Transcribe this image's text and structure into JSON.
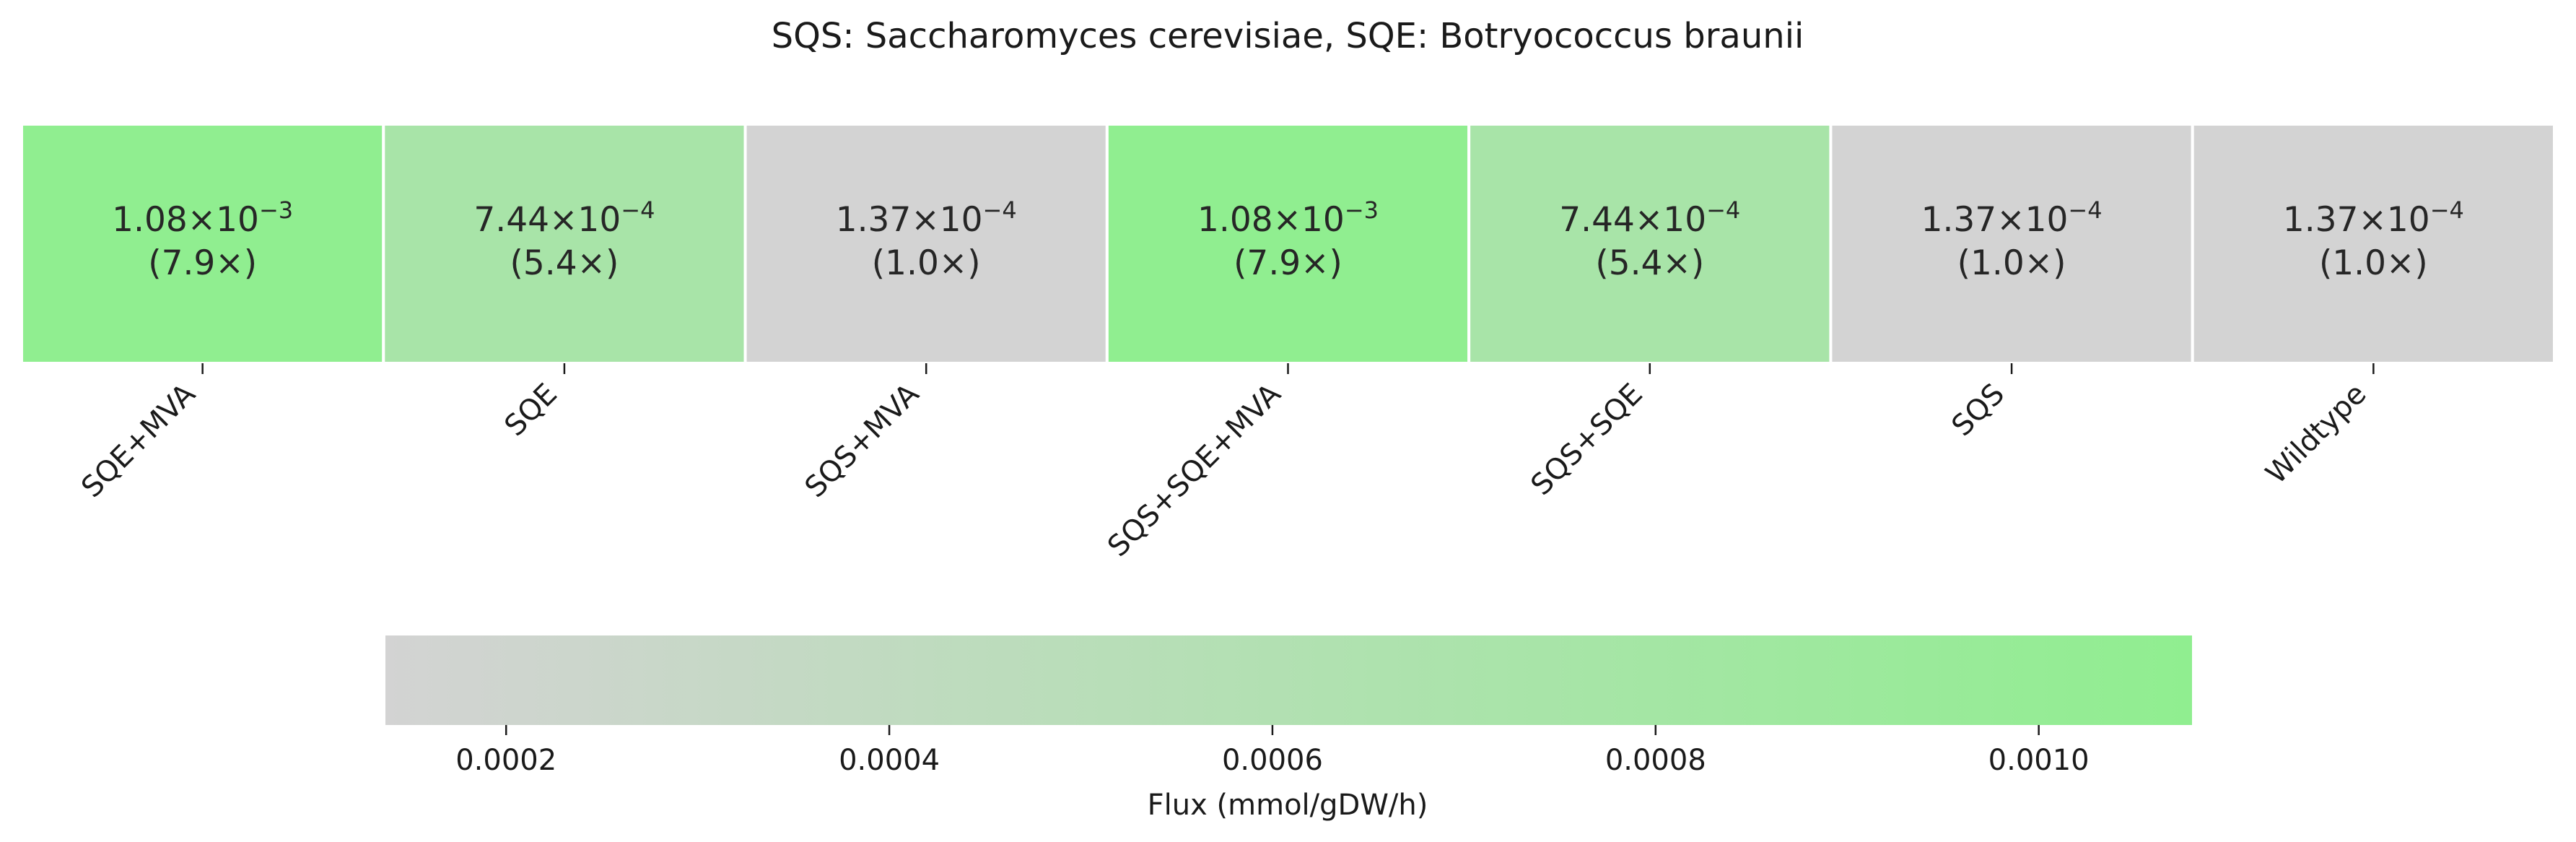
{
  "chart_data": {
    "type": "heatmap",
    "title": "SQS: Saccharomyces cerevisiae, SQE: Botryococcus braunii",
    "categories": [
      "SQE+MVA",
      "SQE",
      "SQS+MVA",
      "SQS+SQE+MVA",
      "SQS+SQE",
      "SQS",
      "Wildtype"
    ],
    "values": [
      0.00108,
      0.000744,
      0.000137,
      0.00108,
      0.000744,
      0.000137,
      0.000137
    ],
    "cells": [
      {
        "mantissa": "1.08",
        "exponent": "−3",
        "fold": "(7.9×)"
      },
      {
        "mantissa": "7.44",
        "exponent": "−4",
        "fold": "(5.4×)"
      },
      {
        "mantissa": "1.37",
        "exponent": "−4",
        "fold": "(1.0×)"
      },
      {
        "mantissa": "1.08",
        "exponent": "−3",
        "fold": "(7.9×)"
      },
      {
        "mantissa": "7.44",
        "exponent": "−4",
        "fold": "(5.4×)"
      },
      {
        "mantissa": "1.37",
        "exponent": "−4",
        "fold": "(1.0×)"
      },
      {
        "mantissa": "1.37",
        "exponent": "−4",
        "fold": "(1.0×)"
      }
    ],
    "colorbar": {
      "label": "Flux (mmol/gDW/h)",
      "range": [
        0.000137,
        0.00108
      ],
      "ticks": [
        0.0002,
        0.0004,
        0.0006,
        0.0008,
        0.001
      ],
      "tick_labels": [
        "0.0002",
        "0.0004",
        "0.0006",
        "0.0008",
        "0.0010"
      ],
      "orientation": "horizontal"
    },
    "colormap": {
      "low": "#d3d3d3",
      "high": "#90ee90"
    },
    "grid": false
  }
}
